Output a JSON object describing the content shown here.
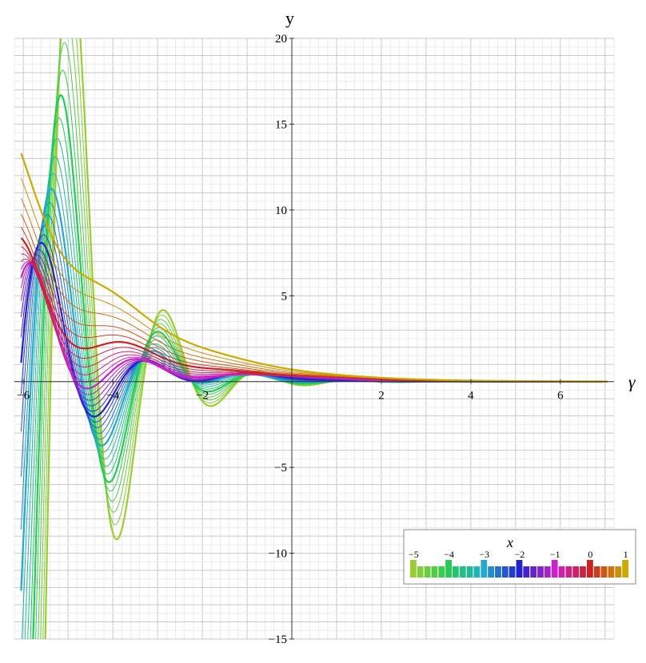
{
  "chart_data": {
    "type": "line",
    "xlabel": "γ",
    "ylabel": "y",
    "xlim": [
      -6.2,
      7.2
    ],
    "ylim": [
      -15,
      20
    ],
    "x_ticks": [
      -6,
      -4,
      -2,
      2,
      4,
      6
    ],
    "y_ticks": [
      -15,
      -10,
      -5,
      5,
      10,
      15,
      20
    ],
    "x_tick_labels": [
      "−6",
      "−4",
      "−2",
      "2",
      "4",
      "6"
    ],
    "y_tick_labels": [
      "−15",
      "−10",
      "−5",
      "5",
      "10",
      "15",
      "20"
    ],
    "grid": true,
    "legend": {
      "title": "x",
      "placement": "bottom-right",
      "parameter_range": [
        -5,
        1
      ],
      "step": 0.2,
      "tick_values": [
        -5,
        -4,
        -3,
        -2,
        -1,
        0,
        1
      ],
      "tick_labels": [
        "−5",
        "−4",
        "−3",
        "−2",
        "−1",
        "0",
        "1"
      ]
    },
    "series_description": "Family of curves y(γ) for parameter x from −5 to 1 in steps of 0.2, colored by x",
    "colors": {
      "x=-5": "#9acd32",
      "x=-4": "#22cc55",
      "x=-3": "#22aacc",
      "x=-2": "#2222cc",
      "x=-1": "#cc22cc",
      "x=0": "#cc2222",
      "x=1": "#ccaa00"
    }
  }
}
